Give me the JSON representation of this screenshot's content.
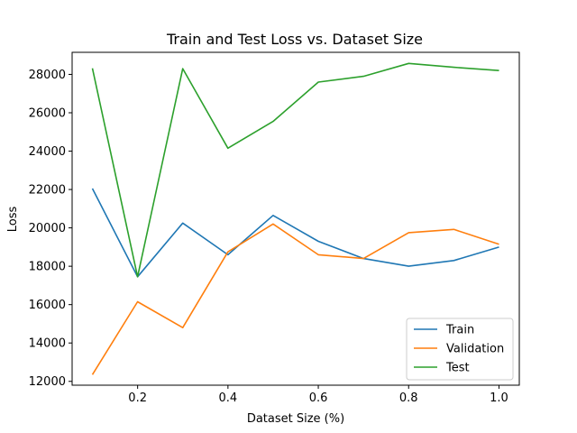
{
  "chart_data": {
    "type": "line",
    "title": "Train and Test Loss vs. Dataset Size",
    "xlabel": "Dataset Size (%)",
    "ylabel": "Loss",
    "x": [
      0.1,
      0.2,
      0.3,
      0.4,
      0.5,
      0.6,
      0.7,
      0.8,
      0.9,
      1.0
    ],
    "xlim": [
      0.055,
      1.045
    ],
    "ylim": [
      11800,
      29150
    ],
    "xticks": [
      0.2,
      0.4,
      0.6,
      0.8,
      1.0
    ],
    "xtick_labels": [
      "0.2",
      "0.4",
      "0.6",
      "0.8",
      "1.0"
    ],
    "yticks": [
      12000,
      14000,
      16000,
      18000,
      20000,
      22000,
      24000,
      26000,
      28000
    ],
    "ytick_labels": [
      "12000",
      "14000",
      "16000",
      "18000",
      "20000",
      "22000",
      "24000",
      "26000",
      "28000"
    ],
    "grid": false,
    "legend_position": "lower-right",
    "series": [
      {
        "name": "Train",
        "color": "#1f77b4",
        "values": [
          22050,
          17450,
          20250,
          18600,
          20650,
          19300,
          18400,
          18000,
          18300,
          19000
        ]
      },
      {
        "name": "Validation",
        "color": "#ff7f0e",
        "values": [
          12350,
          16150,
          14800,
          18750,
          20200,
          18600,
          18400,
          19750,
          19920,
          19150
        ]
      },
      {
        "name": "Test",
        "color": "#2ca02c",
        "values": [
          28320,
          17450,
          28300,
          24150,
          25550,
          27600,
          27900,
          28570,
          28370,
          28200
        ]
      }
    ]
  }
}
